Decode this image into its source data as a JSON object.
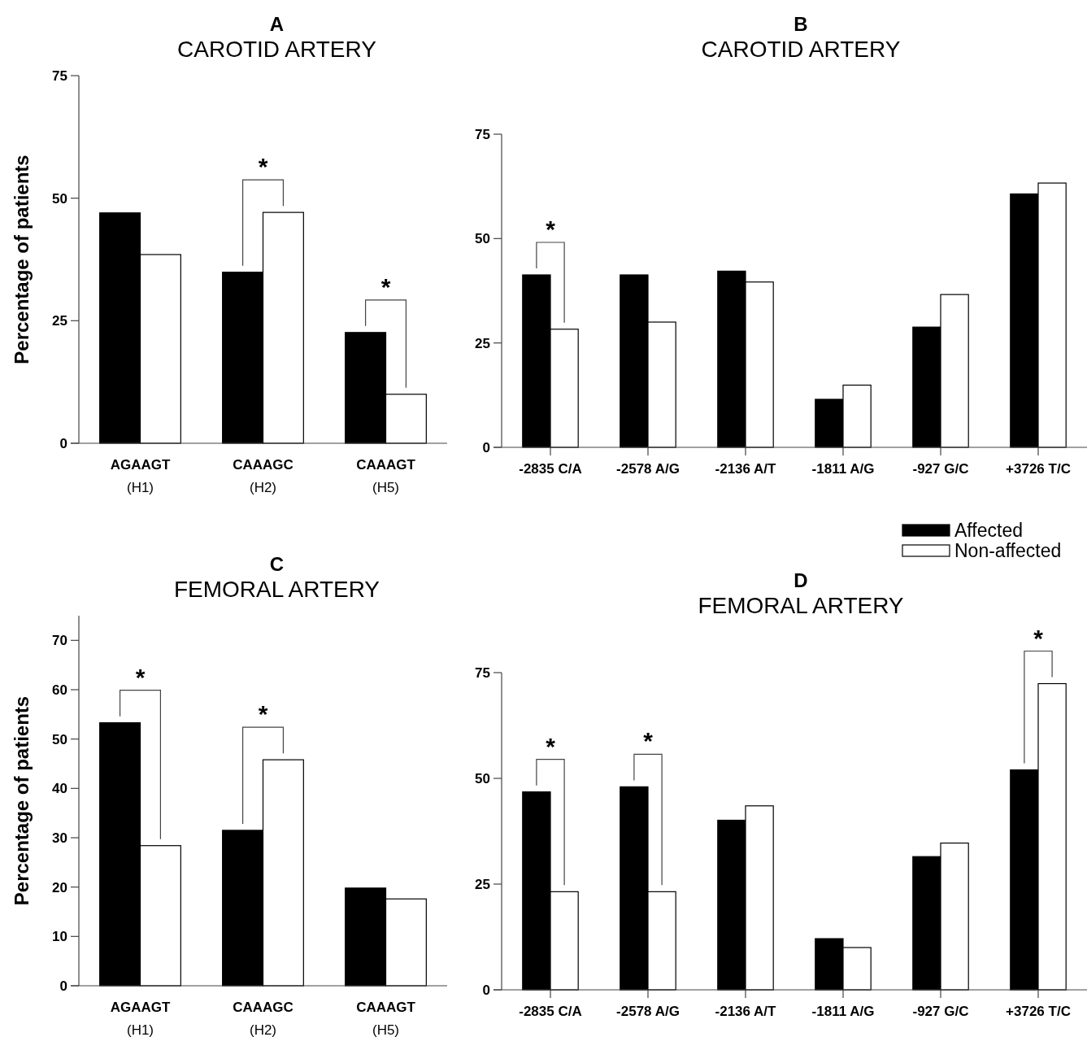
{
  "chart_data": [
    {
      "type": "bar",
      "title": "A",
      "subtitle": "CAROTID ARTERY",
      "ylabel": "Percentage of patients",
      "categories": [
        "AGAAGT (H1)",
        "CAAAGC (H2)",
        "CAAAGT (H5)"
      ],
      "ylim": [
        0,
        75
      ],
      "yticks": [
        0,
        25,
        50,
        75
      ],
      "grid": false,
      "legend": false,
      "series": [
        {
          "color": "#000000",
          "values": [
            47.0,
            34.9,
            22.6
          ]
        },
        {
          "color": "#ffffff",
          "values": [
            38.5,
            47.1,
            10.0
          ]
        }
      ],
      "annotations": [
        {
          "text": "*",
          "x": "CAAAGC (H2)",
          "y": 47.1
        },
        {
          "text": "*",
          "x": "CAAAGT (H5)",
          "y": 22.6
        }
      ]
    },
    {
      "type": "bar",
      "title": "B",
      "subtitle": "CAROTID ARTERY",
      "categories": [
        "-2835 C/A",
        "-2578 A/G",
        "-2136 A/T",
        "-1811 A/G",
        "-927 G/C",
        "+3726 T/C"
      ],
      "ylim": [
        0,
        75
      ],
      "yticks": [
        0,
        25,
        50,
        75
      ],
      "grid": false,
      "legend": false,
      "series": [
        {
          "color": "#000000",
          "values": [
            41.3,
            41.3,
            42.2,
            11.5,
            28.8,
            60.7
          ]
        },
        {
          "color": "#ffffff",
          "values": [
            28.3,
            30.0,
            39.6,
            14.9,
            36.6,
            63.3
          ]
        }
      ],
      "annotations": [
        {
          "text": "*",
          "x": "-2835 C/A",
          "y": 41.3
        }
      ]
    },
    {
      "type": "bar",
      "title": "C",
      "subtitle": "FEMORAL ARTERY",
      "ylabel": "Percentage of patients",
      "categories": [
        "AGAAGT (H1)",
        "CAAAGC (H2)",
        "CAAAGT (H5)"
      ],
      "ylim": [
        0,
        75
      ],
      "yticks": [
        0,
        10,
        20,
        30,
        40,
        50,
        60,
        70
      ],
      "grid": false,
      "legend": false,
      "series": [
        {
          "color": "#000000",
          "values": [
            53.3,
            31.5,
            19.8
          ]
        },
        {
          "color": "#ffffff",
          "values": [
            28.4,
            45.8,
            17.6
          ]
        }
      ],
      "annotations": [
        {
          "text": "*",
          "x": "AGAAGT (H1)",
          "y": 53.3
        },
        {
          "text": "*",
          "x": "CAAAGC (H2)",
          "y": 45.8
        }
      ]
    },
    {
      "type": "bar",
      "title": "D",
      "subtitle": "FEMORAL ARTERY",
      "categories": [
        "-2835 C/A",
        "-2578 A/G",
        "-2136 A/T",
        "-1811 A/G",
        "-927 G/C",
        "+3726 T/C"
      ],
      "ylim": [
        0,
        75
      ],
      "yticks": [
        0,
        25,
        50,
        75
      ],
      "grid": false,
      "legend": "top right",
      "series": [
        {
          "name": "Affected",
          "color": "#000000",
          "values": [
            46.8,
            48.0,
            40.1,
            12.1,
            31.5,
            52.0
          ]
        },
        {
          "name": "Non-affected",
          "color": "#ffffff",
          "values": [
            23.2,
            23.2,
            43.5,
            10.0,
            34.7,
            72.4
          ]
        }
      ],
      "annotations": [
        {
          "text": "*",
          "x": "-2835 C/A",
          "y": 46.8
        },
        {
          "text": "*",
          "x": "-2578 A/G",
          "y": 48.0
        },
        {
          "text": "*",
          "x": "+3726 T/C",
          "y": 72.4
        }
      ]
    }
  ]
}
